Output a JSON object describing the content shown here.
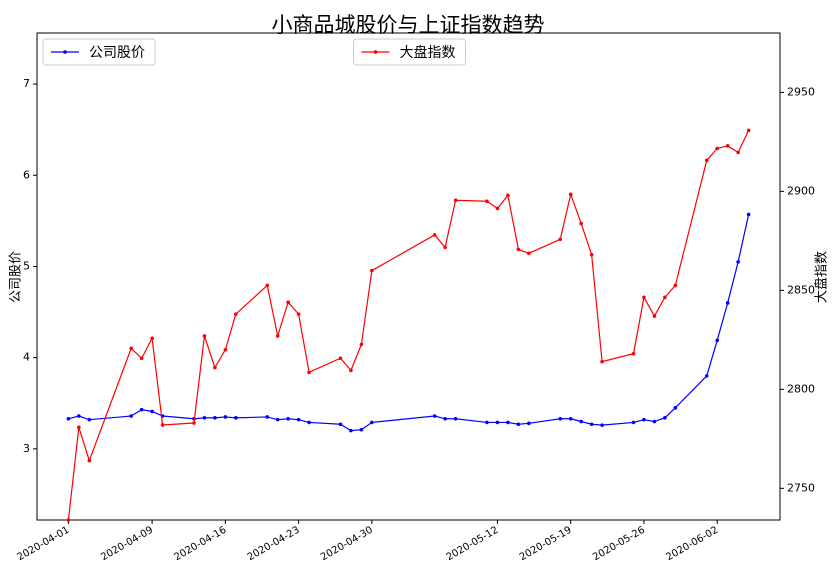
{
  "chart_data": {
    "type": "line",
    "title": "小商品城股价与上证指数趋势",
    "ylabel": "公司股价",
    "y2label": "大盘指数",
    "x": [
      "2020-04-01",
      "2020-04-02",
      "2020-04-03",
      "2020-04-07",
      "2020-04-08",
      "2020-04-09",
      "2020-04-10",
      "2020-04-13",
      "2020-04-14",
      "2020-04-15",
      "2020-04-16",
      "2020-04-17",
      "2020-04-20",
      "2020-04-21",
      "2020-04-22",
      "2020-04-23",
      "2020-04-24",
      "2020-04-27",
      "2020-04-28",
      "2020-04-29",
      "2020-04-30",
      "2020-05-06",
      "2020-05-07",
      "2020-05-08",
      "2020-05-11",
      "2020-05-12",
      "2020-05-13",
      "2020-05-14",
      "2020-05-15",
      "2020-05-18",
      "2020-05-19",
      "2020-05-20",
      "2020-05-21",
      "2020-05-22",
      "2020-05-25",
      "2020-05-26",
      "2020-05-27",
      "2020-05-28",
      "2020-05-29",
      "2020-06-01",
      "2020-06-02",
      "2020-06-03",
      "2020-06-04",
      "2020-06-05"
    ],
    "xlim": [
      "2020-03-29",
      "2020-06-08"
    ],
    "xticks": [
      "2020-04-01",
      "2020-04-09",
      "2020-04-16",
      "2020-04-23",
      "2020-04-30",
      "2020-05-12",
      "2020-05-19",
      "2020-05-26",
      "2020-06-02"
    ],
    "ylim": [
      2.22,
      7.56
    ],
    "yticks": [
      3,
      4,
      5,
      6,
      7
    ],
    "y2lim": [
      2734,
      2980
    ],
    "y2ticks": [
      2750,
      2800,
      2850,
      2900,
      2950
    ],
    "series": [
      {
        "name": "公司股价",
        "color": "#0000ff",
        "legend": "upper left",
        "values": [
          3.33,
          3.36,
          3.32,
          3.36,
          3.43,
          3.41,
          3.36,
          3.33,
          3.34,
          3.34,
          3.35,
          3.34,
          3.35,
          3.32,
          3.33,
          3.32,
          3.29,
          3.27,
          3.2,
          3.21,
          3.29,
          3.36,
          3.33,
          3.33,
          3.29,
          3.29,
          3.29,
          3.27,
          3.28,
          3.33,
          3.33,
          3.3,
          3.27,
          3.26,
          3.29,
          3.32,
          3.3,
          3.34,
          3.45,
          3.8,
          4.19,
          4.6,
          5.05,
          5.57
        ]
      },
      {
        "name": "大盘指数",
        "color": "#ff0000",
        "legend": "upper center",
        "axis": "y2",
        "values": [
          2734,
          2780.8,
          2764,
          2820.7,
          2815.7,
          2825.8,
          2782,
          2783,
          2827,
          2811,
          2820,
          2838,
          2852.5,
          2827,
          2844,
          2838,
          2808.6,
          2815.7,
          2809.6,
          2822.7,
          2860,
          2878,
          2871.7,
          2895.5,
          2895,
          2891.4,
          2898,
          2870.7,
          2868.7,
          2875.8,
          2898.5,
          2883.8,
          2868,
          2814,
          2818,
          2846.5,
          2837,
          2846.5,
          2852.5,
          2915.7,
          2921.7,
          2923,
          2919.7,
          2930.8
        ]
      }
    ]
  }
}
